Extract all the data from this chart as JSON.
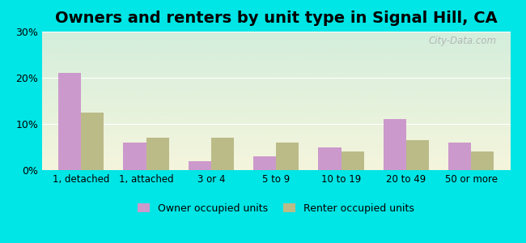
{
  "title": "Owners and renters by unit type in Signal Hill, CA",
  "categories": [
    "1, detached",
    "1, attached",
    "3 or 4",
    "5 to 9",
    "10 to 19",
    "20 to 49",
    "50 or more"
  ],
  "owner_values": [
    21.0,
    6.0,
    2.0,
    3.0,
    5.0,
    11.0,
    6.0
  ],
  "renter_values": [
    12.5,
    7.0,
    7.0,
    6.0,
    4.0,
    6.5,
    4.0
  ],
  "owner_color": "#cc99cc",
  "renter_color": "#bbbb88",
  "background_outer": "#00e5e5",
  "background_inner_top": "#d4eedc",
  "background_inner_bottom": "#f5f5dc",
  "ylim": [
    0,
    30
  ],
  "yticks": [
    0,
    10,
    20,
    30
  ],
  "bar_width": 0.35,
  "title_fontsize": 14,
  "legend_labels": [
    "Owner occupied units",
    "Renter occupied units"
  ],
  "watermark": "City-Data.com",
  "grid_color": "#e0e0e0"
}
